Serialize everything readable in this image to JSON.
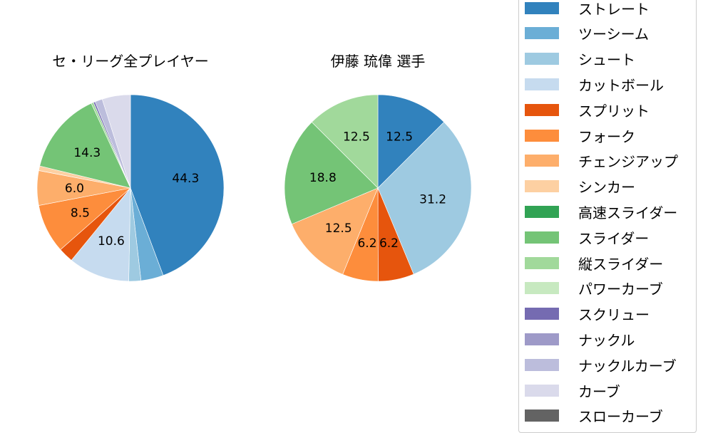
{
  "chart_data": [
    {
      "type": "pie",
      "title": "セ・リーグ全プレイヤー",
      "categories": [
        "ストレート",
        "ツーシーム",
        "シュート",
        "カットボール",
        "スプリット",
        "フォーク",
        "チェンジアップ",
        "シンカー",
        "高速スライダー",
        "スライダー",
        "縦スライダー",
        "パワーカーブ",
        "スクリュー",
        "ナックル",
        "ナックルカーブ",
        "カーブ",
        "スローカーブ"
      ],
      "values": [
        44.3,
        3.9,
        2.1,
        10.6,
        2.6,
        8.5,
        6.0,
        0.8,
        0.0,
        14.3,
        0.4,
        0.0,
        0.3,
        0.0,
        1.3,
        4.9,
        0.0
      ],
      "labels_shown": [
        "44.3",
        "10.6",
        "8.5",
        "14.3"
      ],
      "start_angle": 90,
      "direction": "clockwise"
    },
    {
      "type": "pie",
      "title": "伊藤 琉偉  選手",
      "categories": [
        "ストレート",
        "ツーシーム",
        "シュート",
        "カットボール",
        "スプリット",
        "フォーク",
        "チェンジアップ",
        "シンカー",
        "高速スライダー",
        "スライダー",
        "縦スライダー",
        "パワーカーブ",
        "スクリュー",
        "ナックル",
        "ナックルカーブ",
        "カーブ",
        "スローカーブ"
      ],
      "values": [
        12.5,
        0,
        31.2,
        0,
        6.2,
        6.2,
        12.5,
        0,
        0,
        18.8,
        12.5,
        0,
        0,
        0,
        0,
        0,
        0
      ],
      "labels_shown": [
        "12.5",
        "31.2",
        "6.2",
        "6.2",
        "12.5",
        "18.8",
        "12.5"
      ],
      "start_angle": 90,
      "direction": "clockwise"
    }
  ],
  "titles": {
    "left": "セ・リーグ全プレイヤー",
    "right": "伊藤 琉偉  選手"
  },
  "legend": [
    {
      "label": "ストレート",
      "color": "#3182bd"
    },
    {
      "label": "ツーシーム",
      "color": "#6baed6"
    },
    {
      "label": "シュート",
      "color": "#9ecae1"
    },
    {
      "label": "カットボール",
      "color": "#c6dbef"
    },
    {
      "label": "スプリット",
      "color": "#e6550d"
    },
    {
      "label": "フォーク",
      "color": "#fd8d3c"
    },
    {
      "label": "チェンジアップ",
      "color": "#fdae6b"
    },
    {
      "label": "シンカー",
      "color": "#fdd0a2"
    },
    {
      "label": "高速スライダー",
      "color": "#31a354"
    },
    {
      "label": "スライダー",
      "color": "#74c476"
    },
    {
      "label": "縦スライダー",
      "color": "#a1d99b"
    },
    {
      "label": "パワーカーブ",
      "color": "#c7e9c0"
    },
    {
      "label": "スクリュー",
      "color": "#756bb1"
    },
    {
      "label": "ナックル",
      "color": "#9e9ac8"
    },
    {
      "label": "ナックルカーブ",
      "color": "#bcbddc"
    },
    {
      "label": "カーブ",
      "color": "#dadaeb"
    },
    {
      "label": "スローカーブ",
      "color": "#636363"
    }
  ]
}
